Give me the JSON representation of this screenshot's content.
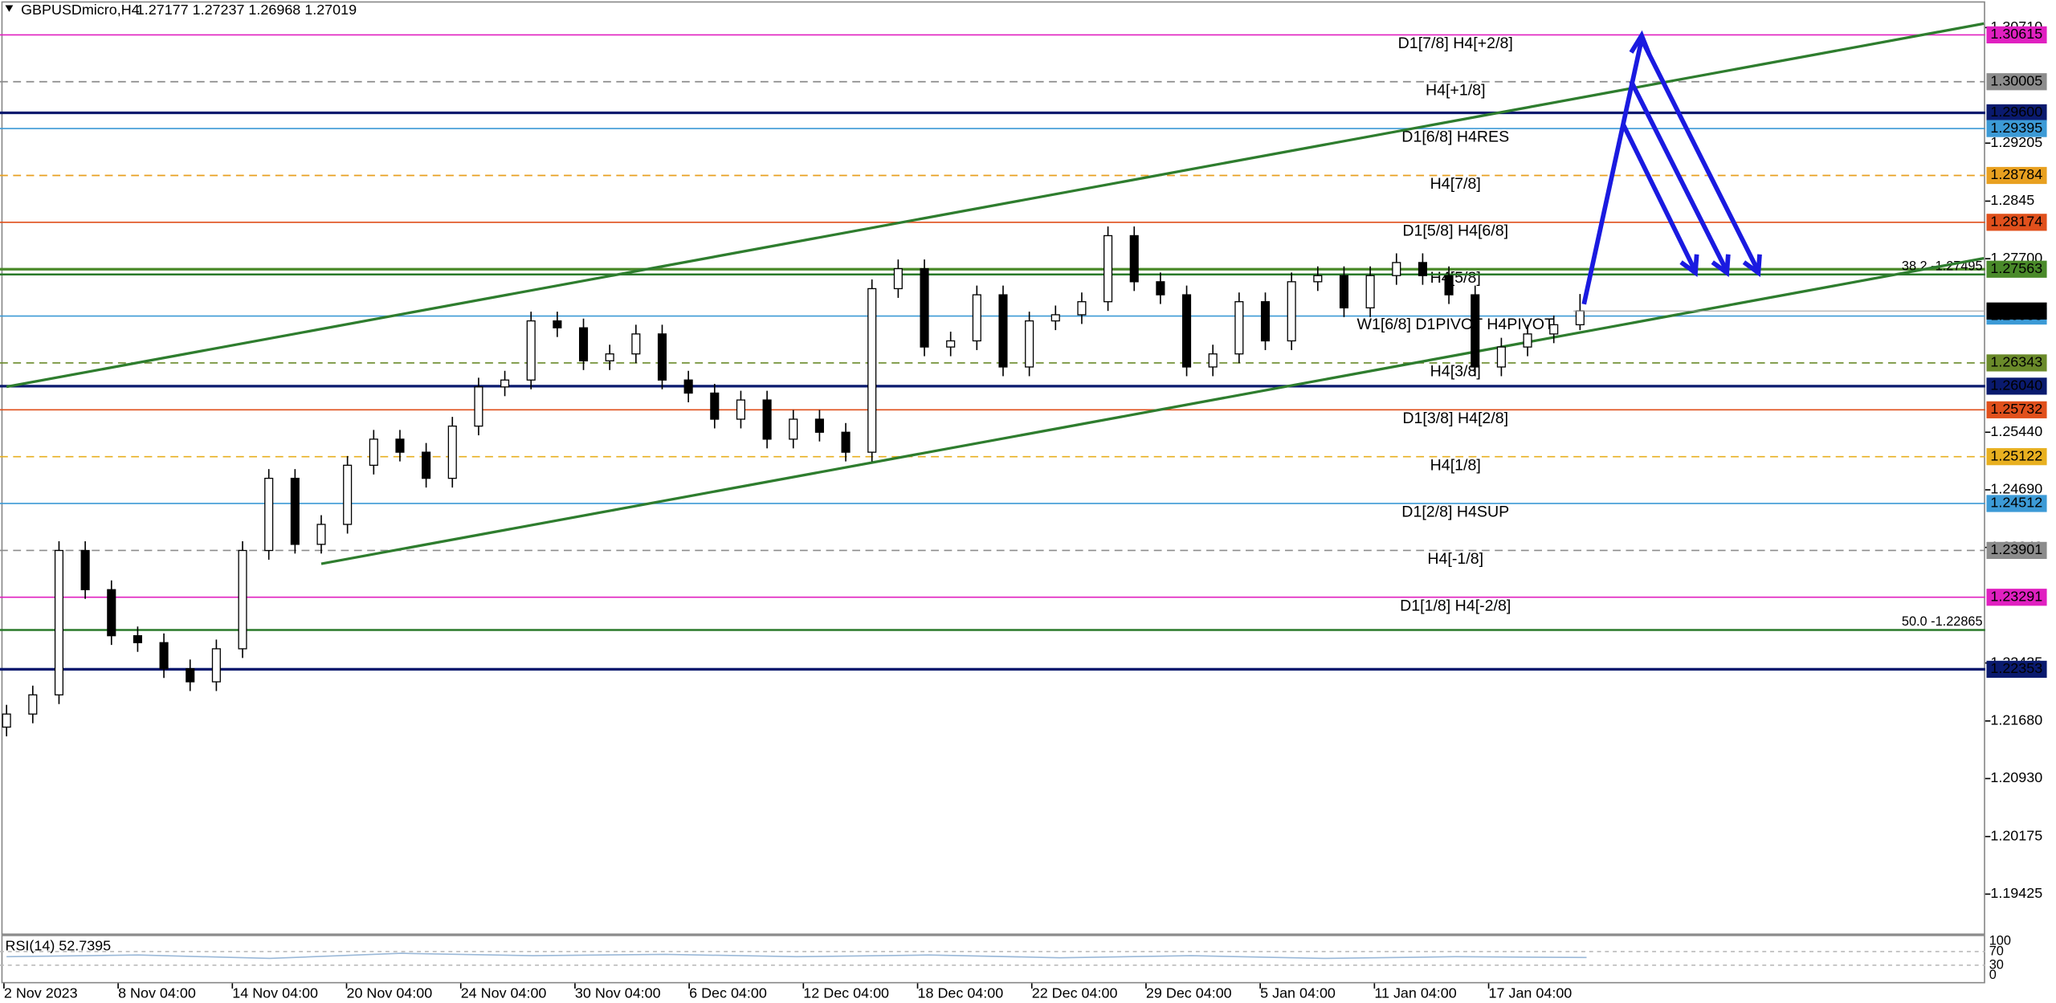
{
  "chart_data": {
    "type": "candlestick",
    "symbol": "GBPUSDmicro,H4",
    "quote": [
      1.27177,
      1.27237,
      1.26968,
      1.27019
    ],
    "categories": [
      "2 Nov 2023",
      "8 Nov 04:00",
      "14 Nov 04:00",
      "20 Nov 04:00",
      "24 Nov 04:00",
      "30 Nov 04:00",
      "6 Dec 04:00",
      "12 Dec 04:00",
      "18 Dec 04:00",
      "22 Dec 04:00",
      "29 Dec 04:00",
      "5 Jan 04:00",
      "11 Jan 04:00",
      "17 Jan 04:00"
    ],
    "ylim": [
      1.18912,
      1.31069
    ],
    "yticks": [
      {
        "value": 1.3071,
        "label": "1.30710"
      },
      1.29205,
      1.2845,
      {
        "value": 1.277,
        "label": "1.27700"
      },
      {
        "value": 1.2544,
        "label": "1.25440"
      },
      {
        "value": 1.2469,
        "label": "1.24690"
      },
      {
        "value": 1.2394,
        "label": "1.23940"
      },
      1.22435,
      {
        "value": 1.2168,
        "label": "1.21680"
      },
      {
        "value": 1.2093,
        "label": "1.20930"
      },
      1.20175,
      1.19425
    ],
    "candles": {
      "open": [
        1.216,
        1.2177,
        1.2202,
        1.239,
        1.2339,
        1.2279,
        1.227,
        1.2236,
        1.2219,
        1.2262,
        1.239,
        1.2484,
        1.2398,
        1.2424,
        1.2501,
        1.2535,
        1.2518,
        1.2484,
        1.2552,
        1.2603,
        1.2612,
        1.2689,
        1.268,
        1.2637,
        1.2646,
        1.2672,
        1.2612,
        1.2595,
        1.2561,
        1.2586,
        1.2535,
        1.2561,
        1.2544,
        1.2518,
        1.2731,
        1.2757,
        1.2655,
        1.2663,
        1.2723,
        1.2629,
        1.2689,
        1.2697,
        1.2714,
        1.28,
        1.274,
        1.2723,
        1.2629,
        1.2646,
        1.2714,
        1.2663,
        1.274,
        1.2748,
        1.2706,
        1.2748,
        1.2765,
        1.2748,
        1.2723,
        1.2629,
        1.2655,
        1.2672,
        1.2684
      ],
      "high": [
        1.2189,
        1.2214,
        1.2402,
        1.2402,
        1.2351,
        1.2291,
        1.2282,
        1.2248,
        1.2274,
        1.2402,
        1.2496,
        1.2496,
        1.2436,
        1.2513,
        1.2547,
        1.2547,
        1.253,
        1.2564,
        1.2615,
        1.2624,
        1.2701,
        1.2701,
        1.2692,
        1.2658,
        1.2684,
        1.2684,
        1.2624,
        1.2607,
        1.2598,
        1.2598,
        1.2573,
        1.2573,
        1.2556,
        1.2743,
        1.2769,
        1.2769,
        1.2675,
        1.2735,
        1.2735,
        1.2701,
        1.2709,
        1.2726,
        1.2812,
        1.2812,
        1.2752,
        1.2735,
        1.2658,
        1.2726,
        1.2726,
        1.2752,
        1.276,
        1.276,
        1.276,
        1.2777,
        1.2777,
        1.276,
        1.2735,
        1.2667,
        1.2684,
        1.2696,
        1.2724
      ],
      "low": [
        1.2148,
        1.2165,
        1.219,
        1.2327,
        1.2267,
        1.2258,
        1.2224,
        1.2207,
        1.2207,
        1.225,
        1.2378,
        1.2386,
        1.2386,
        1.2412,
        1.2489,
        1.2506,
        1.2472,
        1.2472,
        1.254,
        1.2591,
        1.26,
        1.2668,
        1.2625,
        1.2625,
        1.2634,
        1.26,
        1.2583,
        1.2549,
        1.2549,
        1.2523,
        1.2523,
        1.2532,
        1.2506,
        1.2506,
        1.2719,
        1.2643,
        1.2643,
        1.2651,
        1.2617,
        1.2617,
        1.2677,
        1.2685,
        1.2702,
        1.2728,
        1.2711,
        1.2617,
        1.2617,
        1.2634,
        1.2651,
        1.2651,
        1.2728,
        1.2694,
        1.2694,
        1.2736,
        1.2736,
        1.2711,
        1.2617,
        1.2617,
        1.2643,
        1.266,
        1.2677
      ],
      "close": [
        1.2177,
        1.2202,
        1.239,
        1.2339,
        1.2279,
        1.227,
        1.2236,
        1.2219,
        1.2262,
        1.239,
        1.2484,
        1.2398,
        1.2424,
        1.2501,
        1.2535,
        1.2518,
        1.2484,
        1.2552,
        1.2603,
        1.2612,
        1.2689,
        1.268,
        1.2637,
        1.2646,
        1.2672,
        1.2612,
        1.2595,
        1.2561,
        1.2586,
        1.2535,
        1.2561,
        1.2544,
        1.2518,
        1.2731,
        1.2757,
        1.2655,
        1.2663,
        1.2723,
        1.2629,
        1.2689,
        1.2697,
        1.2714,
        1.28,
        1.274,
        1.2723,
        1.2629,
        1.2646,
        1.2714,
        1.2663,
        1.274,
        1.2748,
        1.2706,
        1.2748,
        1.2765,
        1.2748,
        1.2723,
        1.2629,
        1.2655,
        1.2672,
        1.2684,
        1.2702
      ]
    },
    "levels": [
      {
        "price": 1.30615,
        "label": "D1[7/8] H4[+2/8]",
        "color": "#e020c0",
        "line": "solid"
      },
      {
        "price": 1.30005,
        "label": "H4[+1/8]",
        "color": "#8c8c8c",
        "line": "dashed"
      },
      {
        "price": {
          "value": 1.296,
          "label": "1.29600"
        },
        "color": "#0a1a6e",
        "line": "thick"
      },
      {
        "price": 1.29395,
        "label": "D1[6/8] H4RES",
        "color": "#3c9ad6",
        "line": "solid"
      },
      {
        "price": 1.28784,
        "label": "H4[7/8]",
        "color": "#e8a020",
        "line": "dashed"
      },
      {
        "price": 1.28174,
        "label": "D1[5/8] H4[6/8]",
        "color": "#e0501c",
        "line": "solid"
      },
      {
        "price": 1.27563,
        "label": "H4[5/8]",
        "color": "#4a8a2a",
        "line": "thick"
      },
      {
        "price": 1.26953,
        "label": "W1[6/8] D1PIVOT H4PIVOT",
        "color": "#3c9ad6",
        "line": "solid"
      },
      {
        "price": 1.26343,
        "label": "H4[3/8]",
        "color": "#6a8a2a",
        "line": "dashed"
      },
      {
        "price": {
          "value": 1.2604,
          "label": "1.26040"
        },
        "color": "#0a1a6e",
        "line": "thick"
      },
      {
        "price": 1.25732,
        "label": "D1[3/8] H4[2/8]",
        "color": "#e0501c",
        "line": "solid"
      },
      {
        "price": 1.25122,
        "label": "H4[1/8]",
        "color": "#e8b020",
        "line": "dashed"
      },
      {
        "price": 1.24512,
        "label": "D1[2/8] H4SUP",
        "color": "#3c9ad6",
        "line": "solid"
      },
      {
        "price": 1.23901,
        "label": "H4[-1/8]",
        "color": "#8c8c8c",
        "line": "dashed"
      },
      {
        "price": 1.23291,
        "label": "D1[1/8] H4[-2/8]",
        "color": "#e020c0",
        "line": "solid"
      },
      {
        "price": 1.22353,
        "color": "#0a1a6e",
        "line": "thick"
      }
    ],
    "fib_levels": [
      {
        "price": 1.27495,
        "label": "38.2 -1.27495",
        "color": "#2a7a2a"
      },
      {
        "price": 1.22865,
        "label": "50.0 -1.22865",
        "color": "#2a7a2a"
      }
    ],
    "current_price": 1.27019,
    "rsi": {
      "label": "RSI(14) 52.7395",
      "ylim": [
        0,
        100
      ],
      "yticks": [
        100,
        70,
        30,
        0
      ],
      "values": [
        55,
        60,
        50,
        65,
        58,
        62,
        55,
        60,
        52,
        58,
        50,
        55,
        52.7395
      ]
    }
  }
}
